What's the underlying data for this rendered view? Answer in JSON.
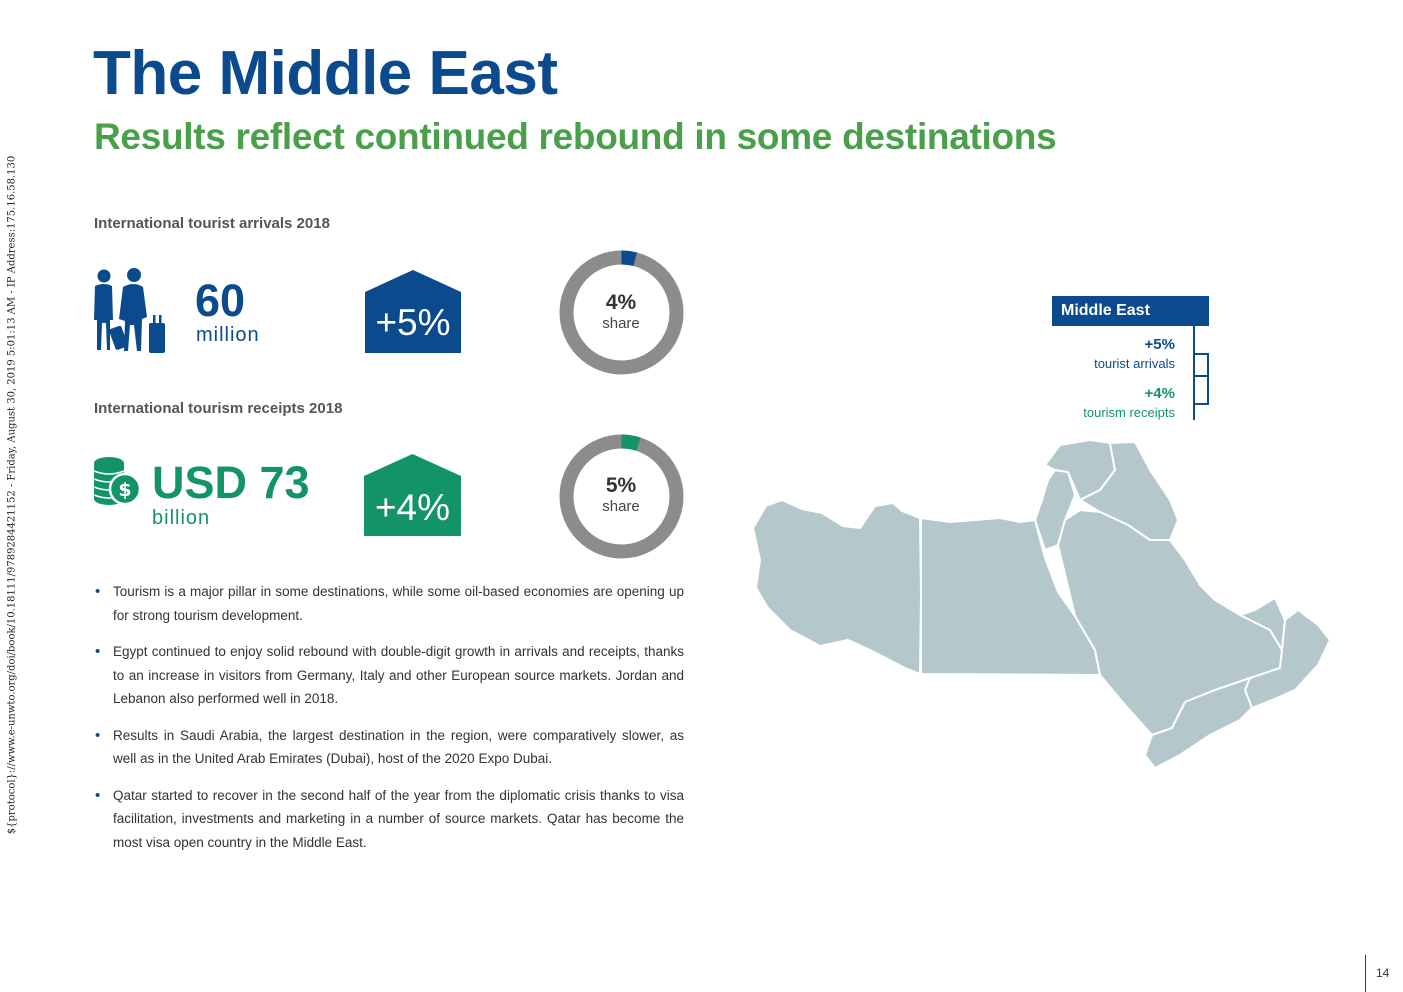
{
  "watermark": "${protocol}://www.e-unwto.org/doi/book/10.18111/9789284421152 - Friday, August 30, 2019 5:01:13 AM - IP Address:175.16.58.130",
  "title": "The Middle East",
  "subtitle": "Results reflect continued rebound in some destinations",
  "arrivals": {
    "label": "International tourist arrivals 2018",
    "value": "60",
    "unit": "million",
    "growth": "+5%",
    "share_pct": "4%",
    "share_label": "share",
    "share_fraction": 0.04
  },
  "receipts": {
    "label": "International tourism receipts 2018",
    "value": "USD 73",
    "unit": "billion",
    "growth": "+4%",
    "share_pct": "5%",
    "share_label": "share",
    "share_fraction": 0.05
  },
  "bullets": [
    "Tourism is a major pillar in some destinations, while some oil-based economies are opening up for strong tourism development.",
    "Egypt continued to enjoy solid rebound with double-digit growth in arrivals and receipts, thanks to an increase in visitors from Germany, Italy and other European source markets. Jordan and Lebanon also performed well in 2018.",
    "Results in Saudi Arabia, the largest destination in the region, were comparatively slower, as well as in the United Arab Emirates (Dubai), host of the 2020 Expo Dubai.",
    "Qatar started to recover in the second half of the year from the diplomatic crisis thanks to visa facilitation, investments and marketing in a number of source markets. Qatar has become the most visa open country in the Middle East."
  ],
  "legend": {
    "title": "Middle East",
    "arrivals_value": "+5%",
    "arrivals_label": "tourist arrivals",
    "receipts_value": "+4%",
    "receipts_label": "tourism receipts"
  },
  "page_number": "14",
  "colors": {
    "blue": "#0b4a8c",
    "green": "#129466",
    "subtitle_green": "#4aa04a",
    "donut_gray": "#8c8c8a",
    "map_fill": "#b4c8cc"
  },
  "icons": {
    "arrivals": "travellers-icon",
    "receipts": "coins-dollar-icon"
  }
}
